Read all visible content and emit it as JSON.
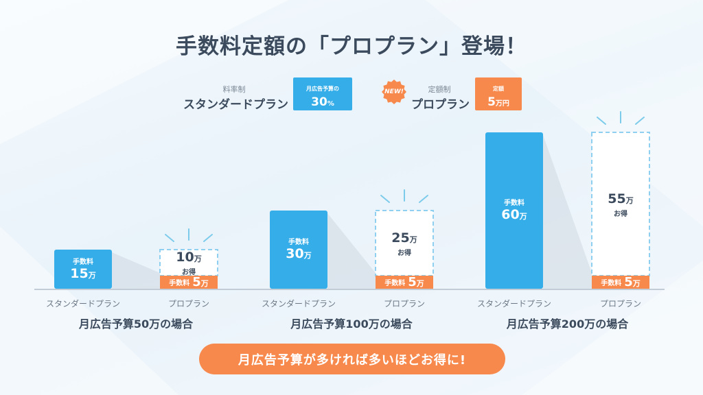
{
  "title": "手数料定額の「プロプラン」登場！",
  "colors": {
    "standard": "#35ade8",
    "pro_fee": "#f7894c",
    "savings_border": "#8fd0f0",
    "cta": "#f7894c",
    "ray": "#7ccbeb"
  },
  "legend": {
    "standard": {
      "small": "料率制",
      "name": "スタンダードプラン",
      "box_small": "月広告予算の",
      "box_big": "30",
      "box_unit": "%"
    },
    "pro": {
      "badge": "NEW!",
      "small": "定額制",
      "name": "プロプラン",
      "box_small": "定額",
      "box_big": "5",
      "box_unit": "万円"
    }
  },
  "chart_data": {
    "type": "bar",
    "value_label": "手数料",
    "savings_label": "お得",
    "unit": "万",
    "categories": [
      "スタンダードプラン",
      "プロプラン"
    ],
    "groups": [
      {
        "label": "月広告予算50万の場合",
        "standard_fee": 15,
        "pro_fee": 5,
        "pro_savings": 10
      },
      {
        "label": "月広告予算100万の場合",
        "standard_fee": 30,
        "pro_fee": 5,
        "pro_savings": 25
      },
      {
        "label": "月広告予算200万の場合",
        "standard_fee": 60,
        "pro_fee": 5,
        "pro_savings": 55
      }
    ]
  },
  "cta": "月広告予算が多ければ多いほどお得に!"
}
